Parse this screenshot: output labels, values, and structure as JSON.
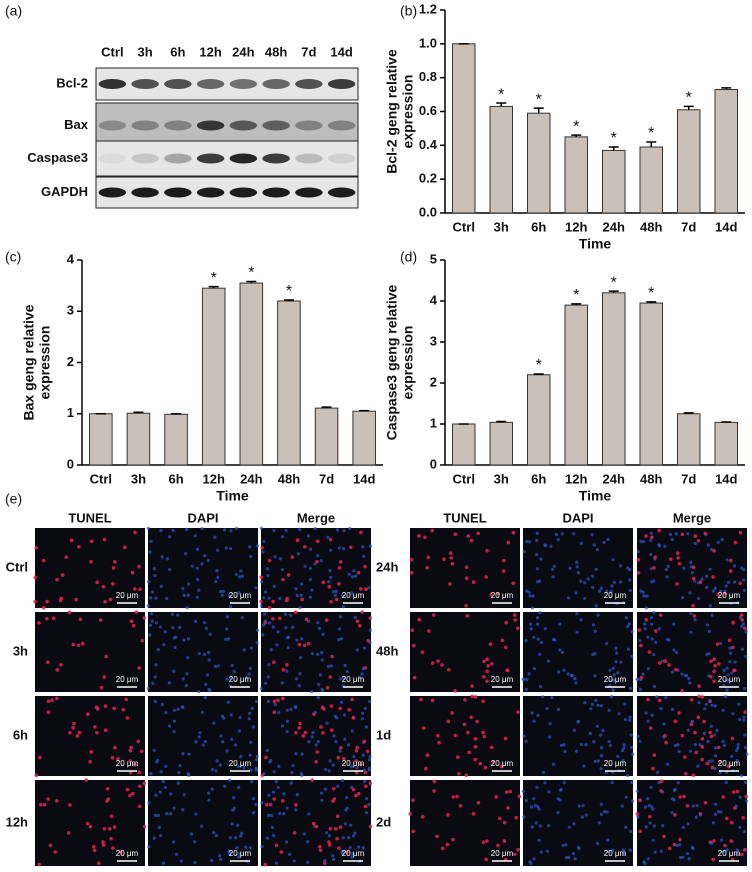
{
  "blot": {
    "label": "(a)",
    "lanes": [
      "Ctrl",
      "3h",
      "6h",
      "12h",
      "24h",
      "48h",
      "7d",
      "14d"
    ],
    "proteins": [
      "Bcl-2",
      "Bax",
      "Caspase3",
      "GAPDH"
    ]
  },
  "chart_data": [
    {
      "type": "bar",
      "label": "(b)",
      "categories": [
        "Ctrl",
        "3h",
        "6h",
        "12h",
        "24h",
        "48h",
        "7d",
        "14d"
      ],
      "values": [
        1.0,
        0.63,
        0.59,
        0.45,
        0.37,
        0.39,
        0.61,
        0.73
      ],
      "errors": [
        0,
        0.02,
        0.03,
        0.01,
        0.02,
        0.03,
        0.02,
        0.01
      ],
      "annotations": [
        null,
        "*",
        "*",
        "*",
        "*",
        "*",
        "*",
        null
      ],
      "color": "#c8c0b9",
      "xlabel": "Time",
      "ylabel": [
        "Bcl-2 geng relative",
        "expression"
      ],
      "ylim": [
        0,
        1.2
      ],
      "yticks": [
        {
          "value": 0,
          "label": "0.0"
        },
        {
          "value": 0.2,
          "label": "0.2"
        },
        {
          "value": 0.4,
          "label": "0.4"
        },
        {
          "value": 0.6,
          "label": "0.6"
        },
        {
          "value": 0.8,
          "label": "0.8"
        },
        {
          "value": 1.0,
          "label": "1.0"
        },
        {
          "value": 1.2,
          "label": "1.2"
        }
      ]
    },
    {
      "type": "bar",
      "label": "(c)",
      "categories": [
        "Ctrl",
        "3h",
        "6h",
        "12h",
        "24h",
        "48h",
        "7d",
        "14d"
      ],
      "values": [
        1.0,
        1.01,
        0.99,
        3.45,
        3.55,
        3.2,
        1.11,
        1.05
      ],
      "errors": [
        0,
        0.02,
        0.01,
        0.03,
        0.03,
        0.02,
        0.02,
        0.01
      ],
      "annotations": [
        null,
        null,
        null,
        "*",
        "*",
        "*",
        null,
        null
      ],
      "color": "#c8c0b9",
      "xlabel": "Time",
      "ylabel": [
        "Bax geng relative",
        "expression"
      ],
      "ylim": [
        0,
        4
      ],
      "yticks": [
        0,
        1,
        2,
        3,
        4
      ]
    },
    {
      "type": "bar",
      "label": "(d)",
      "categories": [
        "Ctrl",
        "3h",
        "6h",
        "12h",
        "24h",
        "48h",
        "7d",
        "14d"
      ],
      "values": [
        1.0,
        1.04,
        2.2,
        3.9,
        4.2,
        3.95,
        1.25,
        1.04
      ],
      "errors": [
        0,
        0.02,
        0.02,
        0.03,
        0.04,
        0.03,
        0.02,
        0.01
      ],
      "annotations": [
        null,
        null,
        "*",
        "*",
        "*",
        "*",
        null,
        null
      ],
      "color": "#c8c0b9",
      "xlabel": "Time",
      "ylabel": [
        "Caspase3 geng relative",
        "expression"
      ],
      "ylim": [
        0,
        5
      ],
      "yticks": [
        0,
        1,
        2,
        3,
        4,
        5
      ]
    }
  ],
  "tunel": {
    "label": "(e)",
    "columns": [
      "TUNEL",
      "DAPI",
      "Merge"
    ],
    "left_rows": [
      "Ctrl",
      "3h",
      "6h",
      "12h"
    ],
    "right_rows": [
      "24h",
      "48h",
      "1d",
      "2d"
    ],
    "scale_bar": "20 μm"
  }
}
